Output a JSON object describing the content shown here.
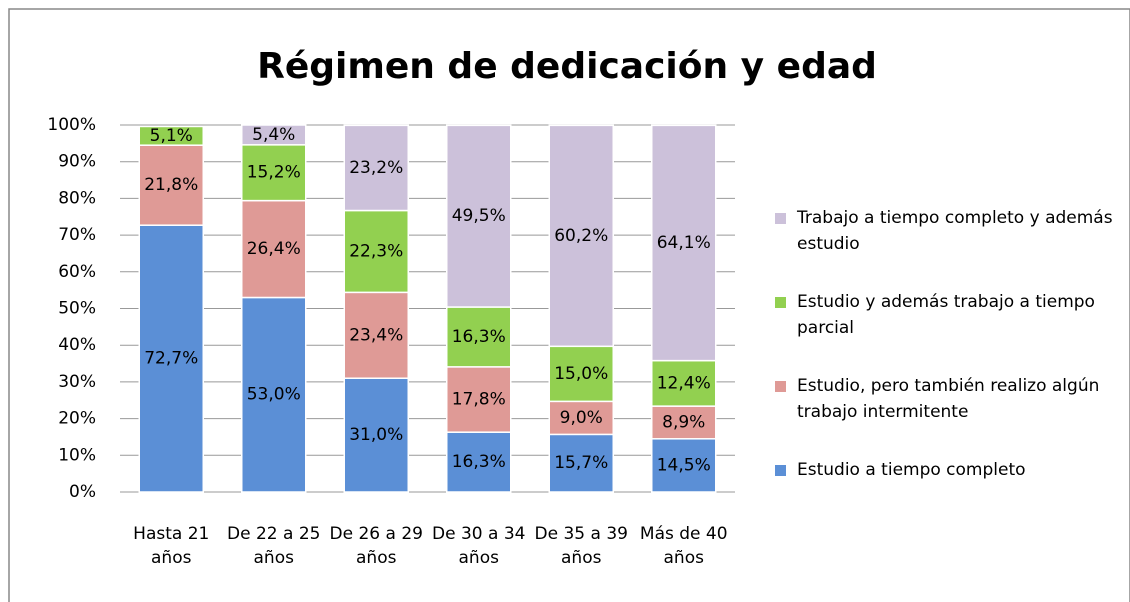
{
  "chart_data": {
    "type": "stacked_bar",
    "title": "Régimen de dedicación y edad",
    "categories": [
      "Hasta 21 años",
      "De 22 a 25 años",
      "De 26 a 29 años",
      "De 30 a 34 años",
      "De 35 a 39 años",
      "Más de 40 años"
    ],
    "series": [
      {
        "name": "Estudio a tiempo completo",
        "color": "#5b8fd6",
        "values": [
          72.7,
          53.0,
          31.0,
          16.3,
          15.7,
          14.5
        ],
        "value_labels": [
          "72,7%",
          "53,0%",
          "31,0%",
          "16,3%",
          "15,7%",
          "14,5%"
        ]
      },
      {
        "name": "Estudio, pero también realizo algún trabajo intermitente",
        "color": "#df9a96",
        "values": [
          21.8,
          26.4,
          23.4,
          17.8,
          9.0,
          8.9
        ],
        "value_labels": [
          "21,8%",
          "26,4%",
          "23,4%",
          "17,8%",
          "9,0%",
          "8,9%"
        ]
      },
      {
        "name": "Estudio y además trabajo a tiempo parcial",
        "color": "#92d050",
        "values": [
          5.1,
          15.2,
          22.3,
          16.3,
          15.0,
          12.4
        ],
        "value_labels": [
          "5,1%",
          "15,2%",
          "22,3%",
          "16,3%",
          "15,0%",
          "12,4%"
        ]
      },
      {
        "name": "Trabajo a tiempo completo y además estudio",
        "color": "#ccc1da",
        "values": [
          null,
          5.4,
          23.2,
          49.5,
          60.2,
          64.1
        ],
        "value_labels": [
          null,
          "5,4%",
          "23,2%",
          "49,5%",
          "60,2%",
          "64,1%"
        ]
      }
    ],
    "ylim": [
      0,
      100
    ],
    "yticks": [
      {
        "value": 0,
        "label": "0%"
      },
      {
        "value": 10,
        "label": "10%"
      },
      {
        "value": 20,
        "label": "20%"
      },
      {
        "value": 30,
        "label": "30%"
      },
      {
        "value": 40,
        "label": "40%"
      },
      {
        "value": 50,
        "label": "50%"
      },
      {
        "value": 60,
        "label": "60%"
      },
      {
        "value": 70,
        "label": "70%"
      },
      {
        "value": 80,
        "label": "80%"
      },
      {
        "value": 90,
        "label": "90%"
      },
      {
        "value": 100,
        "label": "100%"
      }
    ],
    "grid": true,
    "legend": "right"
  }
}
